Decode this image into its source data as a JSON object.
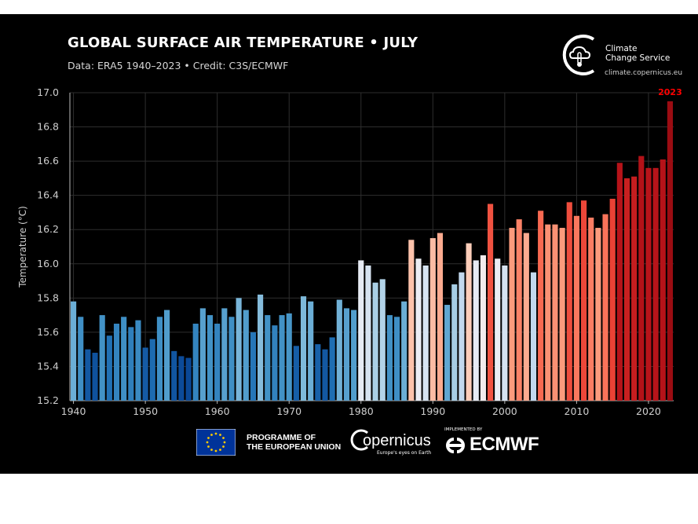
{
  "header": {
    "title": "GLOBAL SURFACE AIR TEMPERATURE • JULY",
    "subtitle": "Data: ERA5 1940–2023 • Credit: C3S/ECMWF"
  },
  "logo": {
    "line1": "Climate",
    "line2": "Change Service",
    "url": "climate.copernicus.eu"
  },
  "footer": {
    "programme_line1": "PROGRAMME OF",
    "programme_line2": "THE EUROPEAN UNION",
    "copernicus": "opernicus",
    "copernicus_tagline": "Europe's eyes on Earth",
    "implemented_by": "IMPLEMENTED BY",
    "ecmwf": "ECMWF"
  },
  "colors": {
    "background": "#000000",
    "cold": "#08479c",
    "neutral": "#f7f7f7",
    "warm": "#a50f15",
    "highlight": "#ff0000"
  },
  "chart_data": {
    "type": "bar",
    "title": "GLOBAL SURFACE AIR TEMPERATURE • JULY",
    "ylabel": "Temperature (°C)",
    "xlabel": "",
    "ylim": [
      15.2,
      17.0
    ],
    "yticks": [
      15.2,
      15.4,
      15.6,
      15.8,
      16.0,
      16.2,
      16.4,
      16.6,
      16.8,
      17.0
    ],
    "ytick_labels": [
      "15.2",
      "15.4",
      "15.6",
      "15.8",
      "16.0",
      "16.2",
      "16.4",
      "16.6",
      "16.8",
      "17.0"
    ],
    "xticks": [
      1940,
      1950,
      1960,
      1970,
      1980,
      1990,
      2000,
      2010,
      2020
    ],
    "xtick_labels": [
      "1940",
      "1950",
      "1960",
      "1970",
      "1980",
      "1990",
      "2000",
      "2010",
      "2020"
    ],
    "grid": true,
    "annotation": {
      "year": 2023,
      "text": "2023"
    },
    "years": [
      1940,
      1941,
      1942,
      1943,
      1944,
      1945,
      1946,
      1947,
      1948,
      1949,
      1950,
      1951,
      1952,
      1953,
      1954,
      1955,
      1956,
      1957,
      1958,
      1959,
      1960,
      1961,
      1962,
      1963,
      1964,
      1965,
      1966,
      1967,
      1968,
      1969,
      1970,
      1971,
      1972,
      1973,
      1974,
      1975,
      1976,
      1977,
      1978,
      1979,
      1980,
      1981,
      1982,
      1983,
      1984,
      1985,
      1986,
      1987,
      1988,
      1989,
      1990,
      1991,
      1992,
      1993,
      1994,
      1995,
      1996,
      1997,
      1998,
      1999,
      2000,
      2001,
      2002,
      2003,
      2004,
      2005,
      2006,
      2007,
      2008,
      2009,
      2010,
      2011,
      2012,
      2013,
      2014,
      2015,
      2016,
      2017,
      2018,
      2019,
      2020,
      2021,
      2022,
      2023
    ],
    "values": [
      15.78,
      15.69,
      15.5,
      15.48,
      15.7,
      15.58,
      15.65,
      15.69,
      15.63,
      15.67,
      15.51,
      15.56,
      15.69,
      15.73,
      15.49,
      15.46,
      15.45,
      15.65,
      15.74,
      15.7,
      15.65,
      15.74,
      15.69,
      15.8,
      15.73,
      15.6,
      15.82,
      15.7,
      15.64,
      15.7,
      15.71,
      15.52,
      15.81,
      15.78,
      15.53,
      15.5,
      15.57,
      15.79,
      15.74,
      15.73,
      16.02,
      15.99,
      15.89,
      15.91,
      15.7,
      15.69,
      15.78,
      16.14,
      16.03,
      15.99,
      16.15,
      16.18,
      15.76,
      15.88,
      15.95,
      16.12,
      16.02,
      16.05,
      16.35,
      16.03,
      15.99,
      16.21,
      16.26,
      16.18,
      15.95,
      16.31,
      16.23,
      16.23,
      16.21,
      16.36,
      16.28,
      16.37,
      16.27,
      16.21,
      16.29,
      16.38,
      16.59,
      16.5,
      16.51,
      16.63,
      16.56,
      16.56,
      16.61,
      16.95
    ]
  }
}
